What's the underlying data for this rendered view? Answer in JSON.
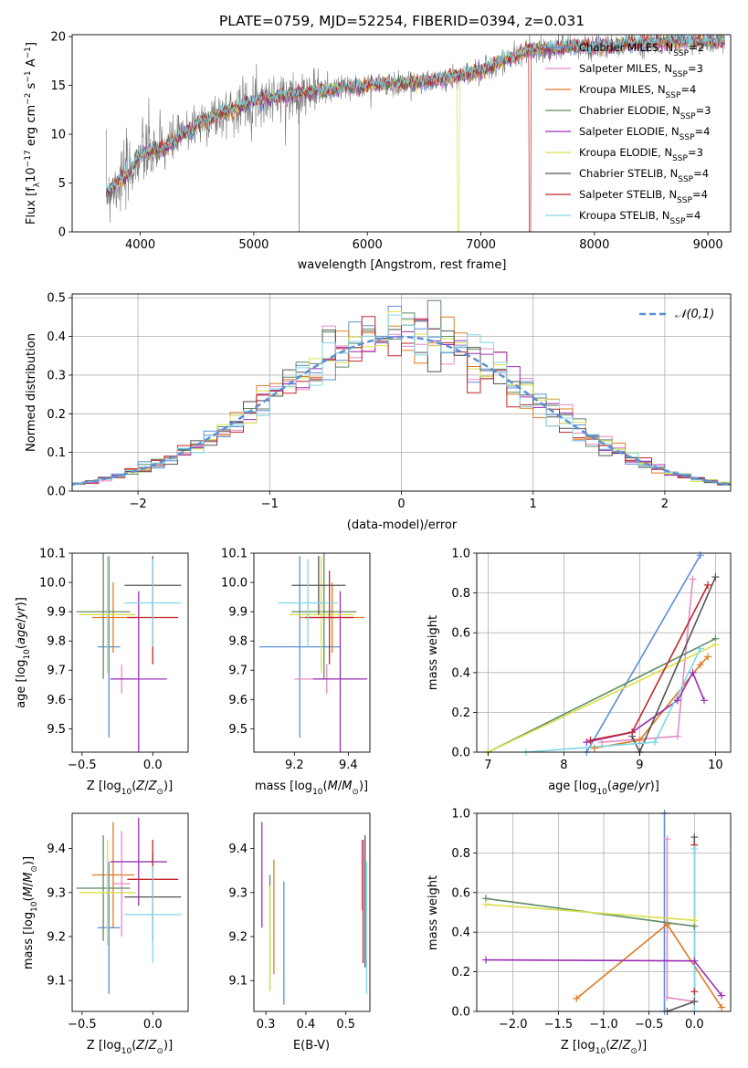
{
  "colors": {
    "Chabrier MILES": "#5b8fd6",
    "Salpeter MILES": "#e58ac6",
    "Kroupa MILES": "#e07b24",
    "Chabrier ELODIE": "#5f8a66",
    "Salpeter ELODIE": "#9a2fb3",
    "Kroupa ELODIE": "#d9e04a",
    "Chabrier STELIB": "#555555",
    "Salpeter STELIB": "#c0262b",
    "Kroupa STELIB": "#7fd8e6"
  },
  "chart_data": [
    {
      "id": "spectrum",
      "type": "line",
      "title": "PLATE=0759, MJD=52254, FIBERID=0394, z=0.031",
      "xlabel": "wavelength [Angstrom, rest frame]",
      "ylabel": "Flux [f",
      "ylabel_parts": [
        "Flux [f",
        "λ",
        "10",
        "−17",
        " erg cm",
        "−2",
        " s",
        "−1",
        " A",
        "−1",
        "]"
      ],
      "xlim": [
        3400,
        9200
      ],
      "ylim": [
        0,
        20.2
      ],
      "xticks": [
        4000,
        5000,
        6000,
        7000,
        8000,
        9000
      ],
      "yticks": [
        0,
        5,
        10,
        15,
        20
      ],
      "series": [
        {
          "name": "Chabrier MILES",
          "N_SSP": 2
        },
        {
          "name": "Salpeter MILES",
          "N_SSP": 3
        },
        {
          "name": "Kroupa MILES",
          "N_SSP": 4
        },
        {
          "name": "Chabrier ELODIE",
          "N_SSP": 3
        },
        {
          "name": "Salpeter ELODIE",
          "N_SSP": 4
        },
        {
          "name": "Kroupa ELODIE",
          "N_SSP": 3
        },
        {
          "name": "Chabrier STELIB",
          "N_SSP": 4
        },
        {
          "name": "Salpeter STELIB",
          "N_SSP": 4
        },
        {
          "name": "Kroupa STELIB",
          "N_SSP": 4
        }
      ],
      "continuum": {
        "x": [
          3700,
          3900,
          4000,
          4200,
          4500,
          4800,
          5000,
          5300,
          5600,
          6000,
          6300,
          6600,
          7000,
          7200,
          7400,
          7600,
          7800,
          8000,
          8300,
          8700,
          9000,
          9200
        ],
        "y": [
          4.0,
          6.0,
          8.0,
          8.5,
          11.0,
          12.5,
          13.5,
          14.0,
          14.5,
          15.0,
          15.2,
          15.5,
          16.5,
          17.5,
          18.5,
          18.8,
          19.0,
          18.9,
          19.2,
          19.5,
          19.5,
          19.6
        ]
      },
      "legend_position": "right",
      "legend_label_template": "{name}, N_SSP={n}"
    },
    {
      "id": "residuals",
      "type": "histogram",
      "xlabel": "(data-model)/error",
      "ylabel": "Normed distribution",
      "xlim": [
        -2.5,
        2.5
      ],
      "ylim": [
        0,
        0.51
      ],
      "xticks": [
        -2,
        -1,
        0,
        1,
        2
      ],
      "yticks": [
        0.0,
        0.1,
        0.2,
        0.3,
        0.4,
        0.5
      ],
      "bin_width": 0.1,
      "reference": {
        "name": "𝒩(0,1)",
        "mean": 0,
        "sigma": 1
      },
      "legend_position": "top-right",
      "grid": true
    },
    {
      "id": "age_vs_Z",
      "type": "errorbar",
      "xlabel": "Z [log10(Z/Z⊙)]",
      "ylabel": "age  [log10(age/yr)]",
      "xlim": [
        -0.57,
        0.25
      ],
      "ylim": [
        9.42,
        10.1
      ],
      "xticks": [
        -0.5,
        0.0
      ],
      "yticks": [
        9.5,
        9.6,
        9.7,
        9.8,
        9.9,
        10.0,
        10.1
      ],
      "points": [
        {
          "series": "Chabrier MILES",
          "x": -0.31,
          "xerr": 0.08,
          "y": 9.78,
          "yerr": 0.31
        },
        {
          "series": "Salpeter MILES",
          "x": -0.22,
          "xerr": 0.06,
          "y": 9.67,
          "yerr": 0.05
        },
        {
          "series": "Kroupa MILES",
          "x": -0.28,
          "xerr": 0.15,
          "y": 9.88,
          "yerr": 0.12
        },
        {
          "series": "Chabrier ELODIE",
          "x": -0.35,
          "xerr": 0.19,
          "y": 9.9,
          "yerr": 0.23
        },
        {
          "series": "Salpeter ELODIE",
          "x": -0.1,
          "xerr": 0.2,
          "y": 9.67,
          "yerr": 0.3
        },
        {
          "series": "Kroupa ELODIE",
          "x": -0.32,
          "xerr": 0.2,
          "y": 9.89,
          "yerr": 0.2
        },
        {
          "series": "Chabrier STELIB",
          "x": 0.0,
          "xerr": 0.2,
          "y": 9.99,
          "yerr": 0.1
        },
        {
          "series": "Salpeter STELIB",
          "x": 0.0,
          "xerr": 0.18,
          "y": 9.88,
          "yerr": 0.16
        },
        {
          "series": "Kroupa STELIB",
          "x": 0.0,
          "xerr": 0.2,
          "y": 9.93,
          "yerr": 0.15
        }
      ]
    },
    {
      "id": "age_vs_mass",
      "type": "errorbar",
      "xlabel": "mass [log10(M/M⊙)]",
      "ylabel": "",
      "xlim": [
        9.05,
        9.48
      ],
      "ylim": [
        9.42,
        10.1
      ],
      "xticks": [
        9.2,
        9.4
      ],
      "yticks": [
        9.5,
        9.6,
        9.7,
        9.8,
        9.9,
        10.0,
        10.1
      ],
      "points": [
        {
          "series": "Chabrier MILES",
          "x": 9.22,
          "xerr": 0.15,
          "y": 9.78,
          "yerr": 0.31
        },
        {
          "series": "Salpeter MILES",
          "x": 9.32,
          "xerr": 0.12,
          "y": 9.67,
          "yerr": 0.05
        },
        {
          "series": "Kroupa MILES",
          "x": 9.34,
          "xerr": 0.12,
          "y": 9.88,
          "yerr": 0.12
        },
        {
          "series": "Chabrier ELODIE",
          "x": 9.31,
          "xerr": 0.12,
          "y": 9.9,
          "yerr": 0.23
        },
        {
          "series": "Salpeter ELODIE",
          "x": 9.37,
          "xerr": 0.1,
          "y": 9.67,
          "yerr": 0.3
        },
        {
          "series": "Kroupa ELODIE",
          "x": 9.3,
          "xerr": 0.12,
          "y": 9.89,
          "yerr": 0.2
        },
        {
          "series": "Chabrier STELIB",
          "x": 9.29,
          "xerr": 0.1,
          "y": 9.99,
          "yerr": 0.1
        },
        {
          "series": "Salpeter STELIB",
          "x": 9.33,
          "xerr": 0.09,
          "y": 9.88,
          "yerr": 0.16
        },
        {
          "series": "Kroupa STELIB",
          "x": 9.25,
          "xerr": 0.11,
          "y": 9.93,
          "yerr": 0.15
        }
      ]
    },
    {
      "id": "weight_vs_age",
      "type": "line",
      "xlabel": "age  [log10(age/yr)]",
      "ylabel": "mass weight",
      "xlim": [
        6.85,
        10.2
      ],
      "ylim": [
        0,
        1
      ],
      "xticks": [
        7,
        8,
        9,
        10
      ],
      "yticks": [
        0.0,
        0.2,
        0.4,
        0.6,
        0.8,
        1.0
      ],
      "grid": true,
      "series": [
        {
          "name": "Chabrier MILES",
          "x": [
            8.3,
            9.8
          ],
          "y": [
            0.0,
            0.99
          ]
        },
        {
          "name": "Salpeter MILES",
          "x": [
            8.5,
            9.5,
            9.7
          ],
          "y": [
            0.05,
            0.08,
            0.87
          ]
        },
        {
          "name": "Kroupa MILES",
          "x": [
            8.4,
            9.0,
            9.8,
            9.9
          ],
          "y": [
            0.02,
            0.06,
            0.44,
            0.48
          ]
        },
        {
          "name": "Chabrier ELODIE",
          "x": [
            7.0,
            10.0
          ],
          "y": [
            0.0,
            0.57
          ]
        },
        {
          "name": "Salpeter ELODIE",
          "x": [
            8.3,
            8.9,
            9.5,
            9.7,
            9.85
          ],
          "y": [
            0.05,
            0.1,
            0.26,
            0.4,
            0.26
          ]
        },
        {
          "name": "Kroupa ELODIE",
          "x": [
            7.0,
            10.0
          ],
          "y": [
            0.0,
            0.54
          ]
        },
        {
          "name": "Chabrier STELIB",
          "x": [
            8.9,
            9.0,
            10.0
          ],
          "y": [
            0.08,
            0.0,
            0.88
          ]
        },
        {
          "name": "Salpeter STELIB",
          "x": [
            8.35,
            8.9,
            9.9
          ],
          "y": [
            0.06,
            0.1,
            0.84
          ]
        },
        {
          "name": "Kroupa STELIB",
          "x": [
            7.5,
            9.2,
            9.8
          ],
          "y": [
            0.0,
            0.05,
            0.52
          ]
        }
      ]
    },
    {
      "id": "mass_vs_Z",
      "type": "errorbar",
      "xlabel": "Z [log10(Z/Z⊙)]",
      "ylabel": "mass [log10(M/M⊙)]",
      "xlim": [
        -0.57,
        0.25
      ],
      "ylim": [
        9.03,
        9.48
      ],
      "xticks": [
        -0.5,
        0.0
      ],
      "yticks": [
        9.1,
        9.2,
        9.3,
        9.4
      ],
      "points": [
        {
          "series": "Chabrier MILES",
          "x": -0.31,
          "xerr": 0.08,
          "y": 9.22,
          "yerr": 0.15
        },
        {
          "series": "Salpeter MILES",
          "x": -0.22,
          "xerr": 0.06,
          "y": 9.32,
          "yerr": 0.12
        },
        {
          "series": "Kroupa MILES",
          "x": -0.28,
          "xerr": 0.15,
          "y": 9.34,
          "yerr": 0.12
        },
        {
          "series": "Chabrier ELODIE",
          "x": -0.35,
          "xerr": 0.19,
          "y": 9.31,
          "yerr": 0.12
        },
        {
          "series": "Salpeter ELODIE",
          "x": -0.1,
          "xerr": 0.2,
          "y": 9.37,
          "yerr": 0.1
        },
        {
          "series": "Kroupa ELODIE",
          "x": -0.32,
          "xerr": 0.2,
          "y": 9.3,
          "yerr": 0.12
        },
        {
          "series": "Chabrier STELIB",
          "x": 0.0,
          "xerr": 0.2,
          "y": 9.29,
          "yerr": 0.1
        },
        {
          "series": "Salpeter STELIB",
          "x": 0.0,
          "xerr": 0.18,
          "y": 9.33,
          "yerr": 0.09
        },
        {
          "series": "Kroupa STELIB",
          "x": 0.0,
          "xerr": 0.2,
          "y": 9.25,
          "yerr": 0.11
        }
      ]
    },
    {
      "id": "mass_vs_ebv",
      "type": "errorbar",
      "xlabel": "E(B-V)",
      "ylabel": "",
      "xlim": [
        0.27,
        0.56
      ],
      "ylim": [
        9.03,
        9.48
      ],
      "xticks": [
        0.3,
        0.4,
        0.5
      ],
      "yticks": [
        9.1,
        9.2,
        9.3,
        9.4
      ],
      "points": [
        {
          "series": "Chabrier MILES",
          "x": 0.345,
          "y": 9.185,
          "yerr": 0.14
        },
        {
          "series": "Salpeter MILES",
          "x": 0.54,
          "y": 9.34,
          "yerr": 0.08
        },
        {
          "series": "Kroupa MILES",
          "x": 0.32,
          "y": 9.245,
          "yerr": 0.13
        },
        {
          "series": "Chabrier ELODIE",
          "x": 0.31,
          "y": 9.21,
          "yerr": 0.13
        },
        {
          "series": "Salpeter ELODIE",
          "x": 0.29,
          "y": 9.34,
          "yerr": 0.12
        },
        {
          "series": "Kroupa ELODIE",
          "x": 0.31,
          "y": 9.195,
          "yerr": 0.12
        },
        {
          "series": "Chabrier STELIB",
          "x": 0.548,
          "y": 9.28,
          "yerr": 0.15
        },
        {
          "series": "Salpeter STELIB",
          "x": 0.543,
          "y": 9.28,
          "yerr": 0.14
        },
        {
          "series": "Kroupa STELIB",
          "x": 0.552,
          "y": 9.22,
          "yerr": 0.15
        }
      ]
    },
    {
      "id": "weight_vs_Z",
      "type": "line",
      "xlabel": "Z [log10(Z/Z⊙)]",
      "ylabel": "mass weight",
      "xlim": [
        -2.4,
        0.4
      ],
      "ylim": [
        0,
        1
      ],
      "xticks": [
        -2.0,
        -1.5,
        -1.0,
        -0.5,
        0.0
      ],
      "yticks": [
        0.0,
        0.2,
        0.4,
        0.6,
        0.8,
        1.0
      ],
      "grid": true,
      "series": [
        {
          "name": "Chabrier MILES",
          "x": [
            -0.33,
            -0.33
          ],
          "y": [
            0.0,
            1.0
          ]
        },
        {
          "name": "Salpeter MILES",
          "x": [
            -0.3,
            -0.3,
            0.0
          ],
          "y": [
            0.87,
            0.07,
            0.05
          ]
        },
        {
          "name": "Kroupa MILES",
          "x": [
            -1.3,
            -0.3,
            0.3
          ],
          "y": [
            0.065,
            0.44,
            0.02
          ]
        },
        {
          "name": "Chabrier ELODIE",
          "x": [
            -2.3,
            0.0
          ],
          "y": [
            0.57,
            0.43
          ]
        },
        {
          "name": "Salpeter ELODIE",
          "x": [
            -2.3,
            0.0,
            0.3
          ],
          "y": [
            0.26,
            0.255,
            0.08
          ]
        },
        {
          "name": "Kroupa ELODIE",
          "x": [
            -2.3,
            0.0
          ],
          "y": [
            0.54,
            0.46
          ]
        },
        {
          "name": "Chabrier STELIB",
          "x": [
            -0.3,
            0.0,
            0.0
          ],
          "y": [
            0.0,
            0.05,
            0.88
          ]
        },
        {
          "name": "Salpeter STELIB",
          "x": [
            0.0,
            0.0
          ],
          "y": [
            0.1,
            0.84
          ]
        },
        {
          "name": "Kroupa STELIB",
          "x": [
            0.0,
            0.0
          ],
          "y": [
            0.0,
            0.82
          ]
        }
      ]
    }
  ]
}
